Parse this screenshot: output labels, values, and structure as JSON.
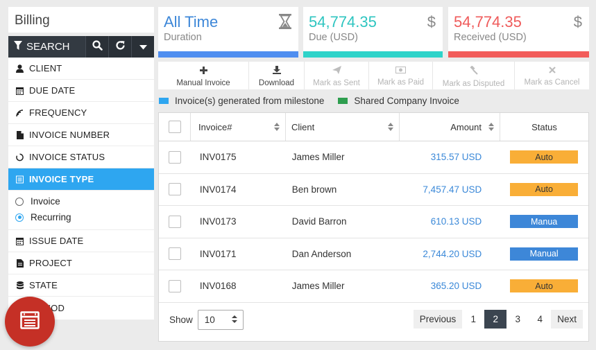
{
  "sidebar": {
    "title": "Billing",
    "search_label": "SEARCH",
    "filters": [
      {
        "label": "CLIENT",
        "icon": "user-icon"
      },
      {
        "label": "DUE DATE",
        "icon": "calendar-icon"
      },
      {
        "label": "FREQUENCY",
        "icon": "frequency-icon"
      },
      {
        "label": "INVOICE NUMBER",
        "icon": "document-icon"
      },
      {
        "label": "INVOICE STATUS",
        "icon": "status-circle-icon"
      },
      {
        "label": "INVOICE TYPE",
        "icon": "list-icon"
      }
    ],
    "type_options": [
      {
        "label": "Invoice",
        "selected": false
      },
      {
        "label": "Recurring",
        "selected": true
      }
    ],
    "filters_after": [
      {
        "label": "ISSUE DATE",
        "icon": "calendar-icon"
      },
      {
        "label": "PROJECT",
        "icon": "document-icon"
      },
      {
        "label": "STATE",
        "icon": "database-icon"
      },
      {
        "label": "PERIOD",
        "icon": "calendar-icon"
      }
    ]
  },
  "cards": {
    "duration": {
      "value": "All Time",
      "label": "Duration",
      "color": "#3d87d8",
      "bar_color": "#4f8ef0"
    },
    "due": {
      "value": "54,774.35",
      "label": "Due (USD)",
      "color": "#2ec5c0",
      "bar_color": "#2fd3c9",
      "icon": "$"
    },
    "received": {
      "value": "54,774.35",
      "label": "Received (USD)",
      "color": "#ef5b5b",
      "bar_color": "#f25c5a",
      "icon": "$"
    }
  },
  "toolbar": {
    "manual_invoice": "Manual Invoice",
    "download": "Download",
    "mark_sent": "Mark as Sent",
    "mark_paid": "Mark as Paid",
    "mark_disputed": "Mark as Disputed",
    "mark_cancel": "Mark as Cancel"
  },
  "legend": {
    "milestone": "Invoice(s) generated from milestone",
    "milestone_color": "#2ea6f0",
    "shared": "Shared Company Invoice",
    "shared_color": "#2e9e4f"
  },
  "table": {
    "headers": {
      "invoice": "Invoice#",
      "client": "Client",
      "amount": "Amount",
      "status": "Status"
    },
    "rows": [
      {
        "invoice": "INV0175",
        "client": "James Miller",
        "amount": "315.57 USD",
        "status": "Auto",
        "status_type": "auto"
      },
      {
        "invoice": "INV0174",
        "client": "Ben brown",
        "amount": "7,457.47 USD",
        "status": "Auto",
        "status_type": "auto"
      },
      {
        "invoice": "INV0173",
        "client": "David Barron",
        "amount": "610.13 USD",
        "status": "Manua",
        "status_type": "manual"
      },
      {
        "invoice": "INV0171",
        "client": "Dan Anderson",
        "amount": "2,744.20 USD",
        "status": "Manual",
        "status_type": "manual"
      },
      {
        "invoice": "INV0168",
        "client": "James Miller",
        "amount": "365.20 USD",
        "status": "Auto",
        "status_type": "auto"
      }
    ]
  },
  "pagination": {
    "show_label": "Show",
    "page_size": "10",
    "previous": "Previous",
    "pages": [
      "1",
      "2",
      "3",
      "4"
    ],
    "current": "2",
    "next": "Next"
  }
}
